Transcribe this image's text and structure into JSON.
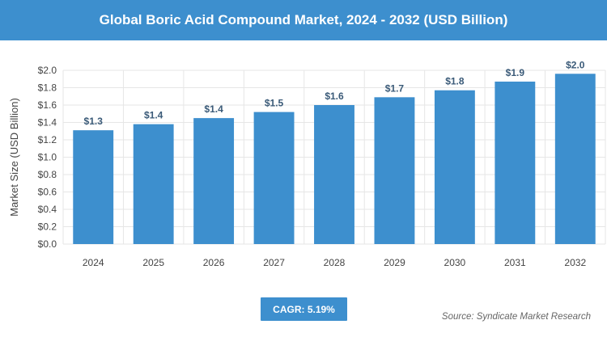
{
  "header": {
    "title": "Global Boric Acid Compound Market, 2024 - 2032 (USD Billion)"
  },
  "footer": {
    "cagr_label": "CAGR: 5.19%",
    "source": "Source: Syndicate Market Research"
  },
  "colors": {
    "accent": "#3d8fce",
    "bar": "#3d8fce",
    "grid": "#e6e6e6",
    "axis_text": "#444444"
  },
  "chart_data": {
    "type": "bar",
    "title": "Global Boric Acid Compound Market, 2024 - 2032 (USD Billion)",
    "xlabel": "",
    "ylabel": "Market Size (USD Billion)",
    "categories": [
      "2024",
      "2025",
      "2026",
      "2027",
      "2028",
      "2029",
      "2030",
      "2031",
      "2032"
    ],
    "values": [
      1.31,
      1.38,
      1.45,
      1.52,
      1.6,
      1.69,
      1.77,
      1.87,
      1.96
    ],
    "data_labels": [
      "$1.3",
      "$1.4",
      "$1.4",
      "$1.5",
      "$1.6",
      "$1.7",
      "$1.8",
      "$1.9",
      "$2.0"
    ],
    "ylim": [
      0,
      2.0
    ],
    "yticks": [
      0,
      0.2,
      0.4,
      0.6,
      0.8,
      1.0,
      1.2,
      1.4,
      1.6,
      1.8,
      2.0
    ],
    "ytick_labels": [
      "$0.0",
      "$0.2",
      "$0.4",
      "$0.6",
      "$0.8",
      "$1.0",
      "$1.2",
      "$1.4",
      "$1.6",
      "$1.8",
      "$2.0"
    ],
    "grid": true,
    "legend": "none"
  }
}
